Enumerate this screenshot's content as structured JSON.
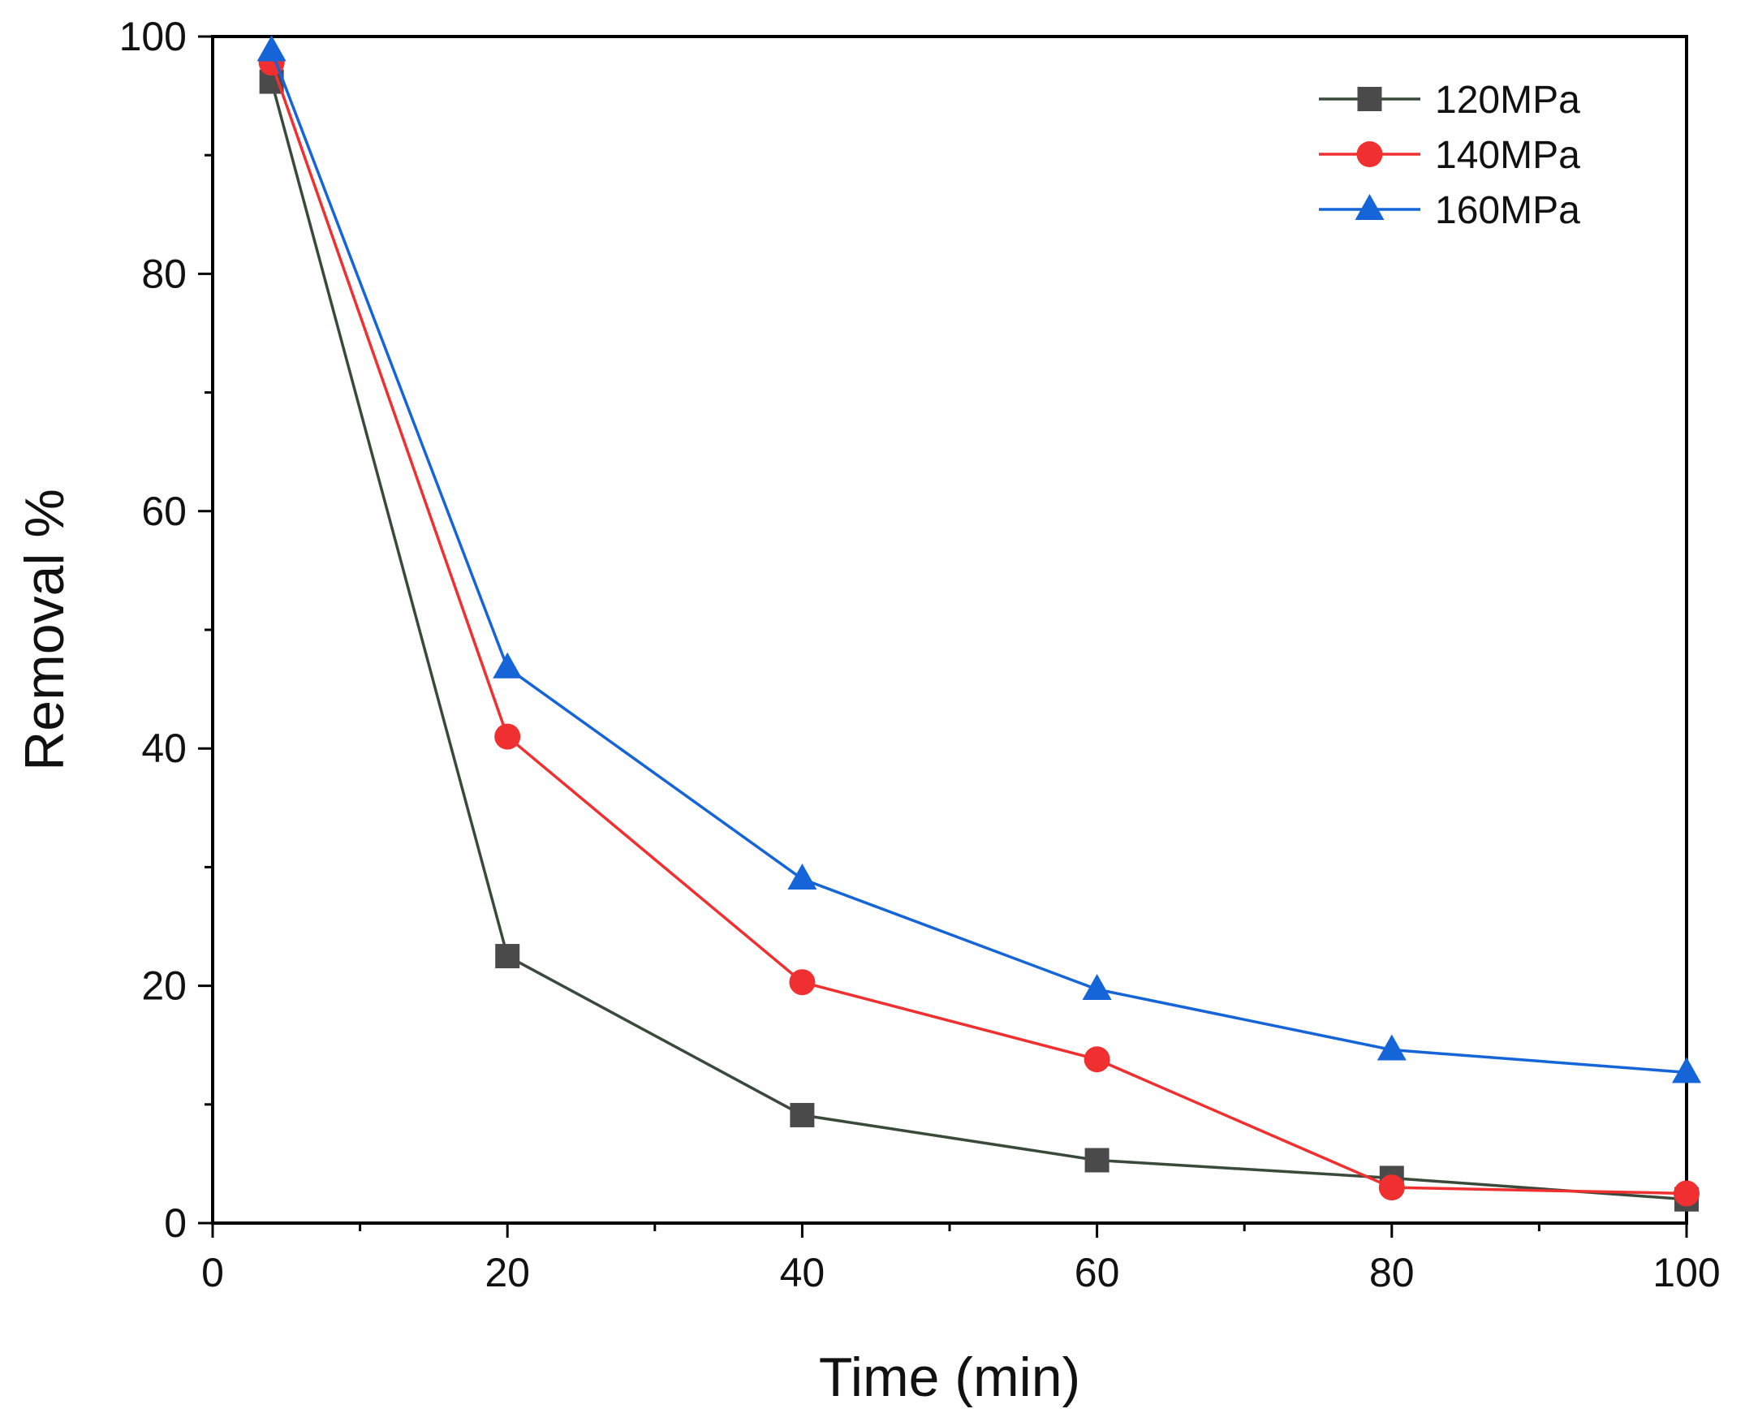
{
  "chart_data": {
    "type": "line",
    "title": "",
    "xlabel": "Time (min)",
    "ylabel": "Removal %",
    "xlim": [
      0,
      100
    ],
    "ylim": [
      0,
      100
    ],
    "x_ticks": [
      0,
      20,
      40,
      60,
      80,
      100
    ],
    "y_ticks": [
      0,
      20,
      40,
      60,
      80,
      100
    ],
    "x_minor_ticks": [
      10,
      30,
      50,
      70,
      90
    ],
    "y_minor_ticks": [
      10,
      30,
      50,
      70,
      90
    ],
    "grid": false,
    "legend_position": "top-right",
    "series": [
      {
        "name": "120MPa",
        "marker": "square",
        "color": "#4a4a4a",
        "line_color": "#3a4a3a",
        "x": [
          4,
          20,
          40,
          60,
          80,
          100
        ],
        "y": [
          96.2,
          22.5,
          9.1,
          5.3,
          3.8,
          2.0
        ]
      },
      {
        "name": "140MPa",
        "marker": "circle",
        "color": "#f03030",
        "line_color": "#f03030",
        "x": [
          4,
          20,
          40,
          60,
          80,
          100
        ],
        "y": [
          97.8,
          41.0,
          20.3,
          13.8,
          3.0,
          2.5
        ]
      },
      {
        "name": "160MPa",
        "marker": "triangle",
        "color": "#1565d8",
        "line_color": "#1565d8",
        "x": [
          4,
          20,
          40,
          60,
          80,
          100
        ],
        "y": [
          98.8,
          46.8,
          29.0,
          19.7,
          14.6,
          12.7
        ]
      }
    ]
  }
}
